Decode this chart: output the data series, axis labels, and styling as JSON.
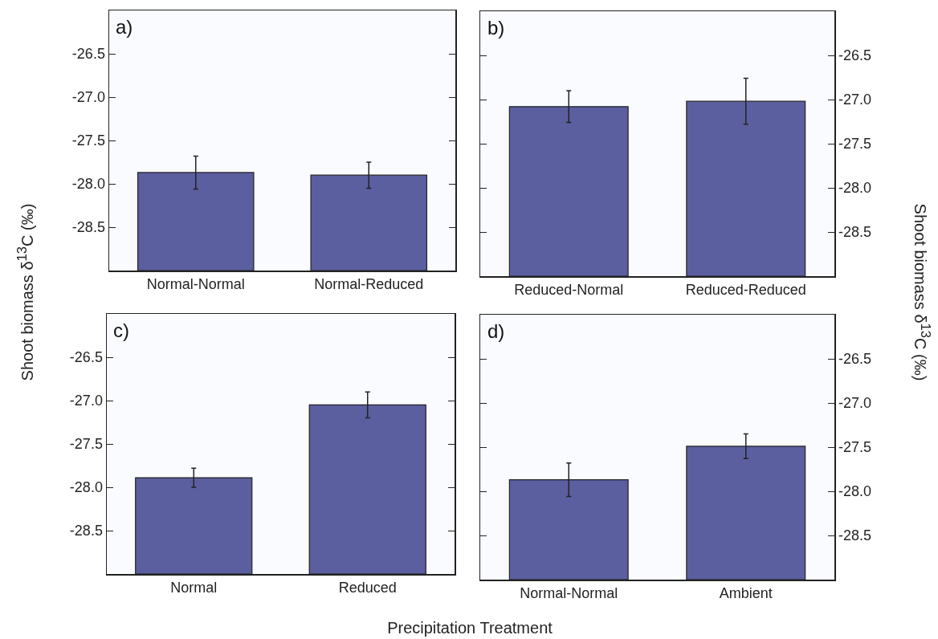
{
  "chart_data": [
    {
      "type": "bar",
      "title": "a)",
      "ylabel": "Shoot biomass δ$^{13}$C (‰)",
      "categories": [
        "Normal-Normal",
        "Normal-Reduced"
      ],
      "base": [
        -29,
        -29
      ],
      "values": [
        1.13,
        1.1
      ],
      "errors": [
        0.19,
        0.15
      ],
      "color": "#5b5e9f",
      "ylim": [
        -29,
        -26
      ],
      "yticks": [
        {
          "value": -28.5,
          "label": "-28.5"
        },
        {
          "value": -28,
          "label": "-28.0"
        },
        {
          "value": -27.5,
          "label": "-27.5"
        },
        {
          "value": -27,
          "label": "-27.0"
        },
        {
          "value": -26.5,
          "label": "-26.5"
        }
      ],
      "grid": false
    },
    {
      "type": "bar",
      "title": "b)",
      "ylabel": "Shoot biomass δ$^{13}$C (‰)",
      "categories": [
        "Reduced-Normal",
        "Reduced-Reduced"
      ],
      "base": [
        -29,
        -29
      ],
      "values": [
        1.92,
        1.98
      ],
      "errors": [
        0.18,
        0.26
      ],
      "color": "#5b5e9f",
      "ylim": [
        -29,
        -26
      ],
      "yticks": [
        {
          "value": -28.5,
          "label": "-28.5"
        },
        {
          "value": -28,
          "label": "-28.0"
        },
        {
          "value": -27.5,
          "label": "-27.5"
        },
        {
          "value": -27,
          "label": "-27.0"
        },
        {
          "value": -26.5,
          "label": "-26.5"
        }
      ],
      "grid": false
    },
    {
      "type": "bar",
      "title": "c)",
      "xlabel": "Precipitation Treatment",
      "categories": [
        "Normal",
        "Reduced"
      ],
      "base": [
        -29,
        -29
      ],
      "values": [
        1.11,
        1.95
      ],
      "errors": [
        0.11,
        0.15
      ],
      "color": "#5b5e9f",
      "ylim": [
        -29,
        -26
      ],
      "yticks": [
        {
          "value": -28.5,
          "label": "-28.5"
        },
        {
          "value": -28,
          "label": "-28.0"
        },
        {
          "value": -27.5,
          "label": "-27.5"
        },
        {
          "value": -27,
          "label": "-27.0"
        },
        {
          "value": -26.5,
          "label": "-26.5"
        }
      ],
      "grid": false
    },
    {
      "type": "bar",
      "title": "d)",
      "categories": [
        "Normal-Normal",
        "Ambient"
      ],
      "base": [
        -29,
        -29
      ],
      "values": [
        1.13,
        1.51
      ],
      "errors": [
        0.19,
        0.14
      ],
      "color": "#5b5e9f",
      "ylim": [
        -29,
        -26
      ],
      "yticks": [
        {
          "value": -28.5,
          "label": "-28.5"
        },
        {
          "value": -28,
          "label": "-28.0"
        },
        {
          "value": -27.5,
          "label": "-27.5"
        },
        {
          "value": -27,
          "label": "-27.0"
        },
        {
          "value": -26.5,
          "label": "-26.5"
        }
      ],
      "grid": false
    }
  ]
}
